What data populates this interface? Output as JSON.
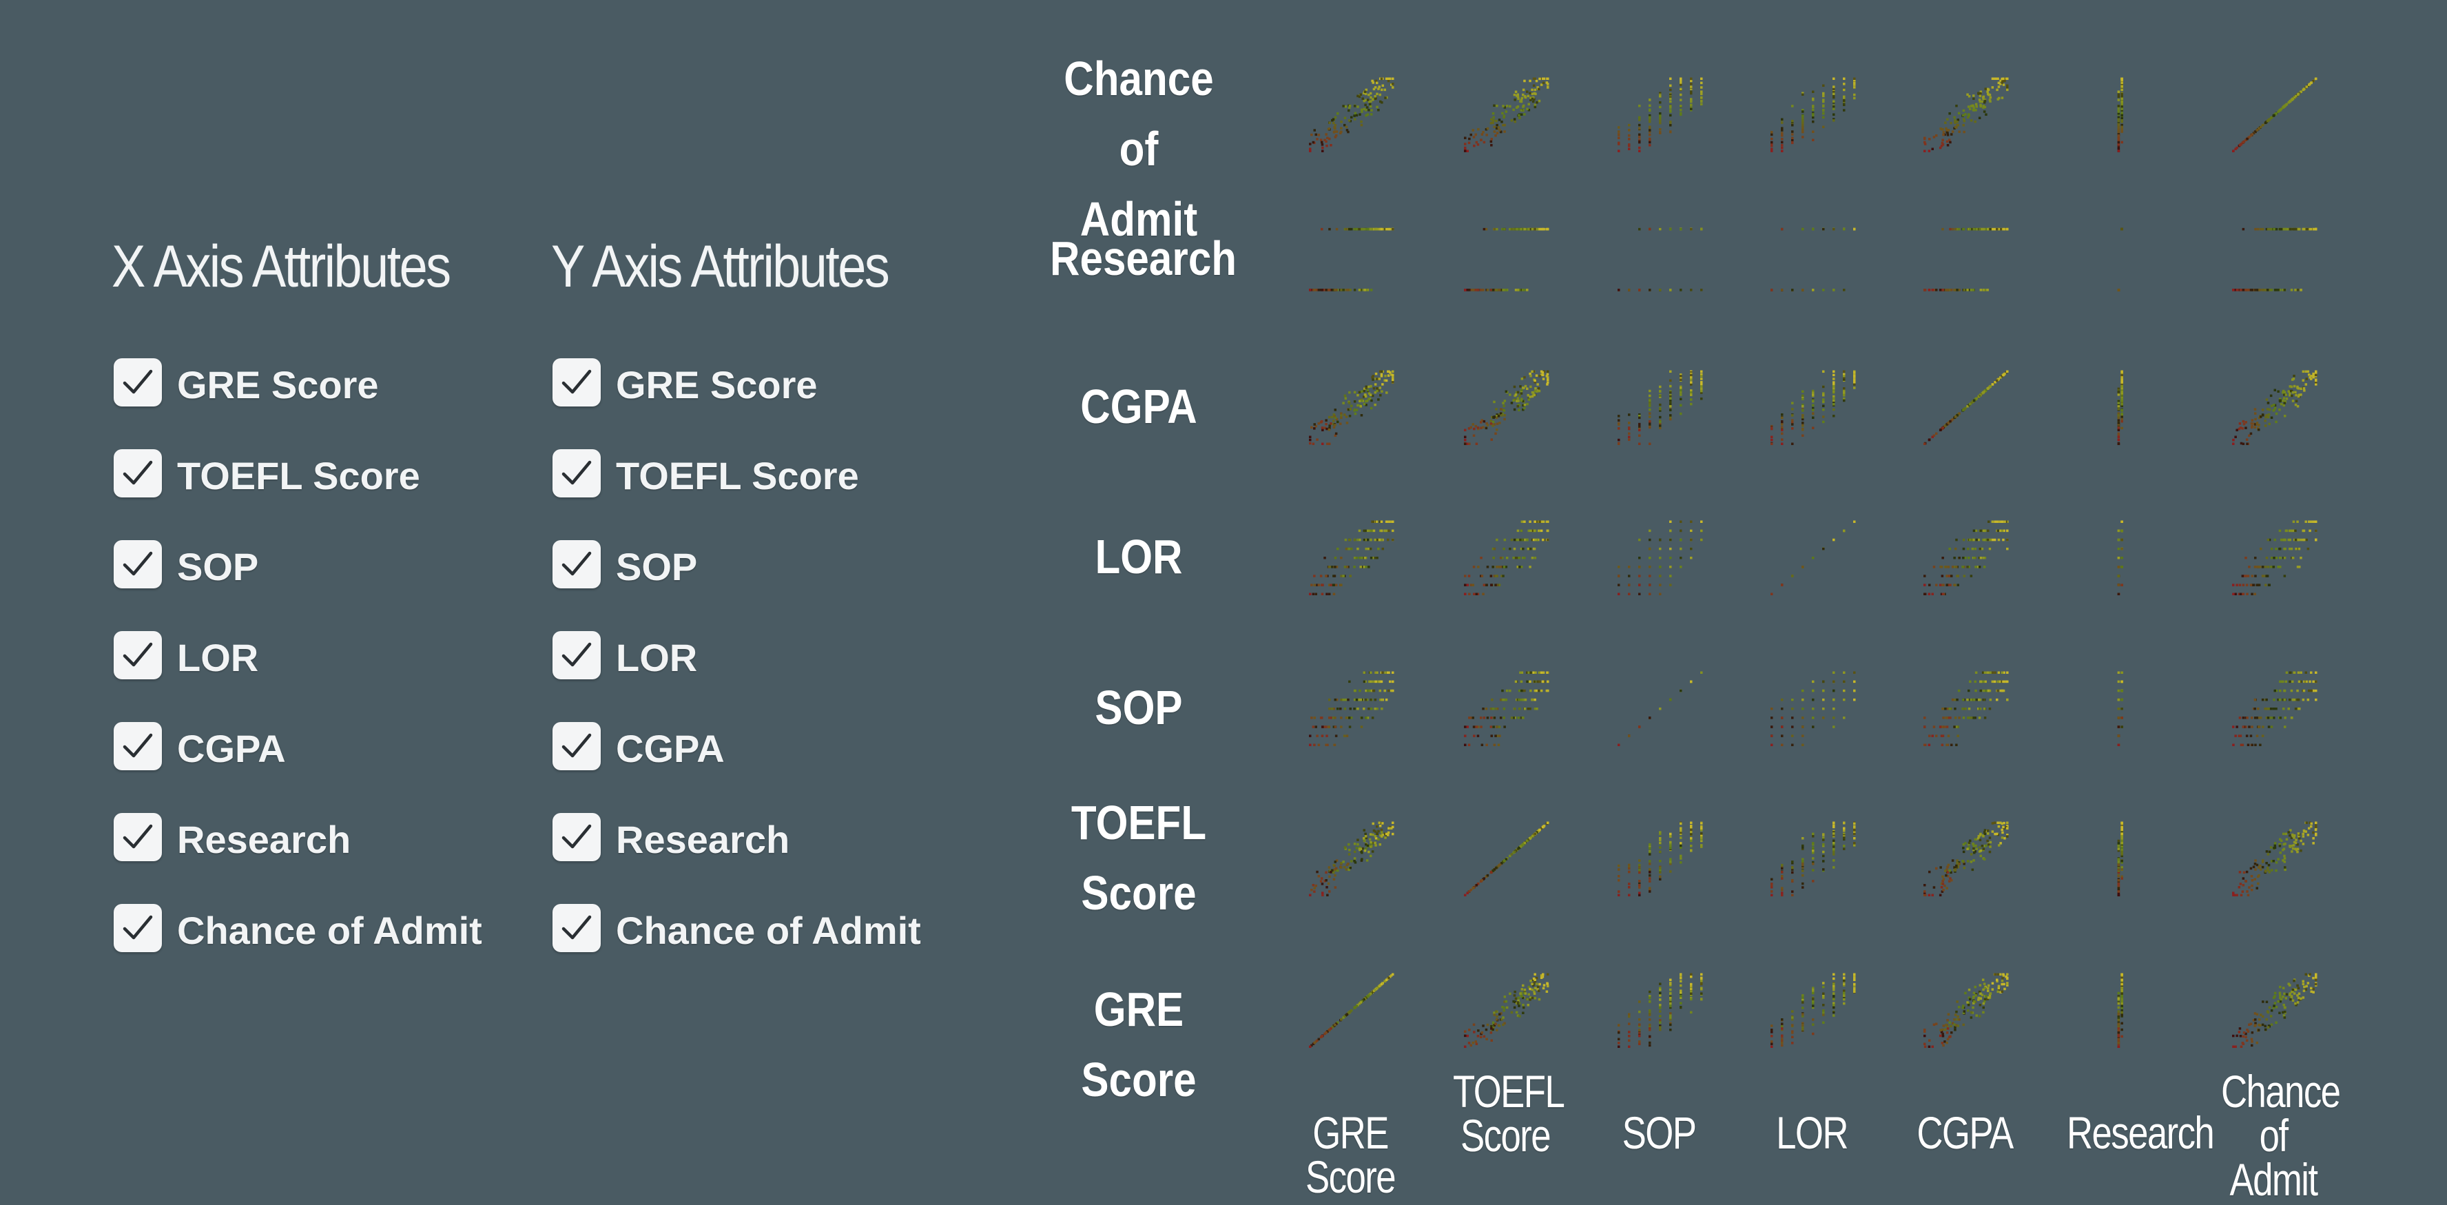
{
  "x_panel": {
    "title": "X Axis Attributes",
    "items": [
      {
        "label": "GRE Score",
        "checked": true
      },
      {
        "label": "TOEFL Score",
        "checked": true
      },
      {
        "label": "SOP",
        "checked": true
      },
      {
        "label": "LOR",
        "checked": true
      },
      {
        "label": "CGPA",
        "checked": true
      },
      {
        "label": "Research",
        "checked": true
      },
      {
        "label": "Chance of Admit",
        "checked": true
      }
    ]
  },
  "y_panel": {
    "title": "Y Axis Attributes",
    "items": [
      {
        "label": "GRE Score",
        "checked": true
      },
      {
        "label": "TOEFL Score",
        "checked": true
      },
      {
        "label": "SOP",
        "checked": true
      },
      {
        "label": "LOR",
        "checked": true
      },
      {
        "label": "CGPA",
        "checked": true
      },
      {
        "label": "Research",
        "checked": true
      },
      {
        "label": "Chance of Admit",
        "checked": true
      }
    ]
  },
  "chart_data": {
    "type": "scatter",
    "variant": "scatterplot-matrix",
    "columns": [
      "GRE Score",
      "TOEFL Score",
      "SOP",
      "LOR",
      "CGPA",
      "Research",
      "Chance of Admit"
    ],
    "rows": [
      "Chance of Admit",
      "Research",
      "CGPA",
      "LOR",
      "SOP",
      "TOEFL Score",
      "GRE Score"
    ],
    "column_labels": [
      [
        "GRE Score"
      ],
      [
        "TOEFL",
        "Score"
      ],
      [
        "SOP"
      ],
      [
        "LOR"
      ],
      [
        "CGPA"
      ],
      [
        "Research"
      ],
      [
        "Chance of",
        "Admit"
      ]
    ],
    "row_labels": [
      [
        "Chance of",
        "Admit"
      ],
      [
        "Research"
      ],
      [
        "CGPA"
      ],
      [
        "LOR"
      ],
      [
        "SOP"
      ],
      [
        "TOEFL",
        "Score"
      ],
      [
        "GRE Score"
      ]
    ],
    "variable_kind": {
      "GRE Score": "continuous",
      "TOEFL Score": "continuous",
      "SOP": "discrete",
      "LOR": "discrete",
      "CGPA": "continuous",
      "Research": "binary",
      "Chance of Admit": "continuous"
    },
    "color_encoding": {
      "low": "#8a1f1f",
      "mid": "#5c7a1a",
      "high": "#c8b82a"
    },
    "grid": false,
    "legend": "none"
  },
  "colors": {
    "background": "#4a5b63",
    "checkbox_fill": "#f4f5f6",
    "text": "#f2f4f5"
  }
}
